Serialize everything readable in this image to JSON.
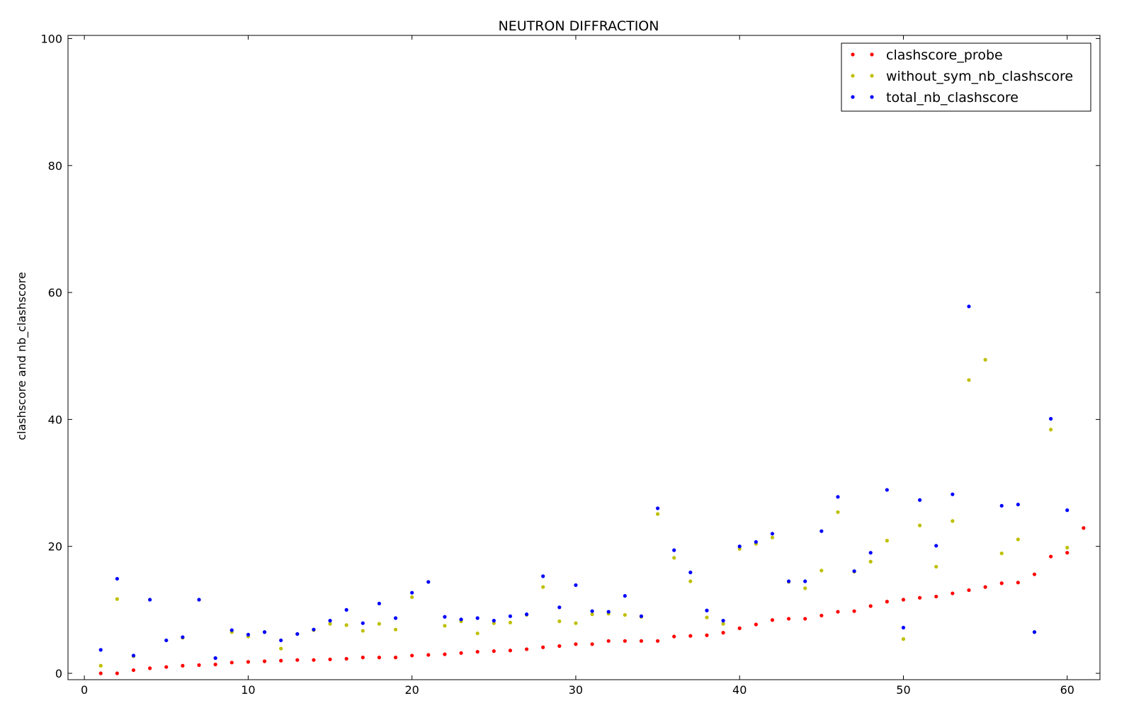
{
  "chart_data": {
    "type": "scatter",
    "title": "NEUTRON DIFFRACTION",
    "xlabel": "",
    "ylabel": "clashscore and nb_clashscore",
    "xlim": [
      -1,
      62
    ],
    "ylim": [
      -1,
      100.5
    ],
    "xticks": [
      0,
      10,
      20,
      30,
      40,
      50,
      60
    ],
    "yticks": [
      0,
      20,
      40,
      60,
      80,
      100
    ],
    "grid": false,
    "legend_position": "top-right",
    "series": [
      {
        "name": "clashscore_probe",
        "color": "#ff0000",
        "points": [
          [
            1,
            0.0
          ],
          [
            2,
            0.0
          ],
          [
            3,
            0.5
          ],
          [
            4,
            0.8
          ],
          [
            5,
            1.0
          ],
          [
            6,
            1.2
          ],
          [
            7,
            1.3
          ],
          [
            8,
            1.4
          ],
          [
            9,
            1.7
          ],
          [
            10,
            1.8
          ],
          [
            11,
            1.9
          ],
          [
            12,
            2.0
          ],
          [
            13,
            2.1
          ],
          [
            14,
            2.1
          ],
          [
            15,
            2.2
          ],
          [
            16,
            2.3
          ],
          [
            17,
            2.5
          ],
          [
            18,
            2.5
          ],
          [
            19,
            2.5
          ],
          [
            20,
            2.8
          ],
          [
            21,
            2.9
          ],
          [
            22,
            3.0
          ],
          [
            23,
            3.2
          ],
          [
            24,
            3.4
          ],
          [
            25,
            3.5
          ],
          [
            26,
            3.6
          ],
          [
            27,
            3.8
          ],
          [
            28,
            4.1
          ],
          [
            29,
            4.3
          ],
          [
            30,
            4.6
          ],
          [
            31,
            4.6
          ],
          [
            32,
            5.1
          ],
          [
            33,
            5.1
          ],
          [
            34,
            5.1
          ],
          [
            35,
            5.1
          ],
          [
            36,
            5.8
          ],
          [
            37,
            5.9
          ],
          [
            38,
            6.0
          ],
          [
            39,
            6.4
          ],
          [
            40,
            7.1
          ],
          [
            41,
            7.7
          ],
          [
            42,
            8.4
          ],
          [
            43,
            8.6
          ],
          [
            44,
            8.6
          ],
          [
            45,
            9.1
          ],
          [
            46,
            9.7
          ],
          [
            47,
            9.8
          ],
          [
            48,
            10.6
          ],
          [
            49,
            11.3
          ],
          [
            50,
            11.6
          ],
          [
            51,
            11.9
          ],
          [
            52,
            12.1
          ],
          [
            53,
            12.6
          ],
          [
            54,
            13.1
          ],
          [
            55,
            13.6
          ],
          [
            56,
            14.2
          ],
          [
            57,
            14.3
          ],
          [
            58,
            15.6
          ],
          [
            59,
            18.4
          ],
          [
            60,
            19.0
          ],
          [
            61,
            22.9
          ]
        ]
      },
      {
        "name": "without_sym_nb_clashscore",
        "color": "#bfbf00",
        "points": [
          [
            1,
            1.2
          ],
          [
            2,
            11.7
          ],
          [
            3,
            2.7
          ],
          [
            4,
            11.6
          ],
          [
            5,
            5.2
          ],
          [
            6,
            5.6
          ],
          [
            7,
            11.6
          ],
          [
            8,
            2.4
          ],
          [
            9,
            6.5
          ],
          [
            10,
            5.8
          ],
          [
            11,
            6.5
          ],
          [
            12,
            3.9
          ],
          [
            13,
            6.2
          ],
          [
            14,
            6.8
          ],
          [
            15,
            7.8
          ],
          [
            16,
            7.6
          ],
          [
            17,
            6.7
          ],
          [
            18,
            7.8
          ],
          [
            19,
            6.9
          ],
          [
            20,
            12.0
          ],
          [
            21,
            14.4
          ],
          [
            22,
            7.5
          ],
          [
            23,
            8.2
          ],
          [
            24,
            6.3
          ],
          [
            25,
            7.9
          ],
          [
            26,
            8.0
          ],
          [
            27,
            9.2
          ],
          [
            28,
            13.6
          ],
          [
            29,
            8.2
          ],
          [
            30,
            7.9
          ],
          [
            31,
            9.3
          ],
          [
            32,
            9.4
          ],
          [
            33,
            9.2
          ],
          [
            34,
            8.9
          ],
          [
            35,
            25.1
          ],
          [
            36,
            18.2
          ],
          [
            37,
            14.5
          ],
          [
            38,
            8.8
          ],
          [
            39,
            7.8
          ],
          [
            40,
            19.6
          ],
          [
            41,
            20.4
          ],
          [
            42,
            21.4
          ],
          [
            43,
            14.4
          ],
          [
            44,
            13.4
          ],
          [
            45,
            16.2
          ],
          [
            46,
            25.4
          ],
          [
            47,
            16.0
          ],
          [
            48,
            17.6
          ],
          [
            49,
            20.9
          ],
          [
            50,
            5.4
          ],
          [
            51,
            23.3
          ],
          [
            52,
            16.8
          ],
          [
            53,
            24.0
          ],
          [
            54,
            46.2
          ],
          [
            55,
            49.4
          ],
          [
            56,
            18.9
          ],
          [
            57,
            21.1
          ],
          [
            58,
            6.5
          ],
          [
            59,
            38.4
          ],
          [
            60,
            19.8
          ]
        ]
      },
      {
        "name": "total_nb_clashscore",
        "color": "#0000ff",
        "points": [
          [
            1,
            3.7
          ],
          [
            2,
            14.9
          ],
          [
            3,
            2.8
          ],
          [
            4,
            11.6
          ],
          [
            5,
            5.2
          ],
          [
            6,
            5.7
          ],
          [
            7,
            11.6
          ],
          [
            8,
            2.4
          ],
          [
            9,
            6.8
          ],
          [
            10,
            6.1
          ],
          [
            11,
            6.5
          ],
          [
            12,
            5.2
          ],
          [
            13,
            6.2
          ],
          [
            14,
            6.9
          ],
          [
            15,
            8.3
          ],
          [
            16,
            10.0
          ],
          [
            17,
            7.9
          ],
          [
            18,
            11.0
          ],
          [
            19,
            8.7
          ],
          [
            20,
            12.7
          ],
          [
            21,
            14.4
          ],
          [
            22,
            8.9
          ],
          [
            23,
            8.5
          ],
          [
            24,
            8.7
          ],
          [
            25,
            8.3
          ],
          [
            26,
            9.0
          ],
          [
            27,
            9.3
          ],
          [
            28,
            15.3
          ],
          [
            29,
            10.4
          ],
          [
            30,
            13.9
          ],
          [
            31,
            9.8
          ],
          [
            32,
            9.7
          ],
          [
            33,
            12.2
          ],
          [
            34,
            9.0
          ],
          [
            35,
            26.0
          ],
          [
            36,
            19.4
          ],
          [
            37,
            15.9
          ],
          [
            38,
            9.9
          ],
          [
            39,
            8.3
          ],
          [
            40,
            20.0
          ],
          [
            41,
            20.7
          ],
          [
            42,
            22.0
          ],
          [
            43,
            14.5
          ],
          [
            44,
            14.5
          ],
          [
            45,
            22.4
          ],
          [
            46,
            27.8
          ],
          [
            47,
            16.1
          ],
          [
            48,
            19.0
          ],
          [
            49,
            28.9
          ],
          [
            50,
            7.2
          ],
          [
            51,
            27.3
          ],
          [
            52,
            20.1
          ],
          [
            53,
            28.2
          ],
          [
            54,
            57.8
          ],
          [
            56,
            26.4
          ],
          [
            57,
            26.6
          ],
          [
            58,
            6.5
          ],
          [
            59,
            40.1
          ],
          [
            60,
            25.7
          ]
        ]
      }
    ]
  }
}
